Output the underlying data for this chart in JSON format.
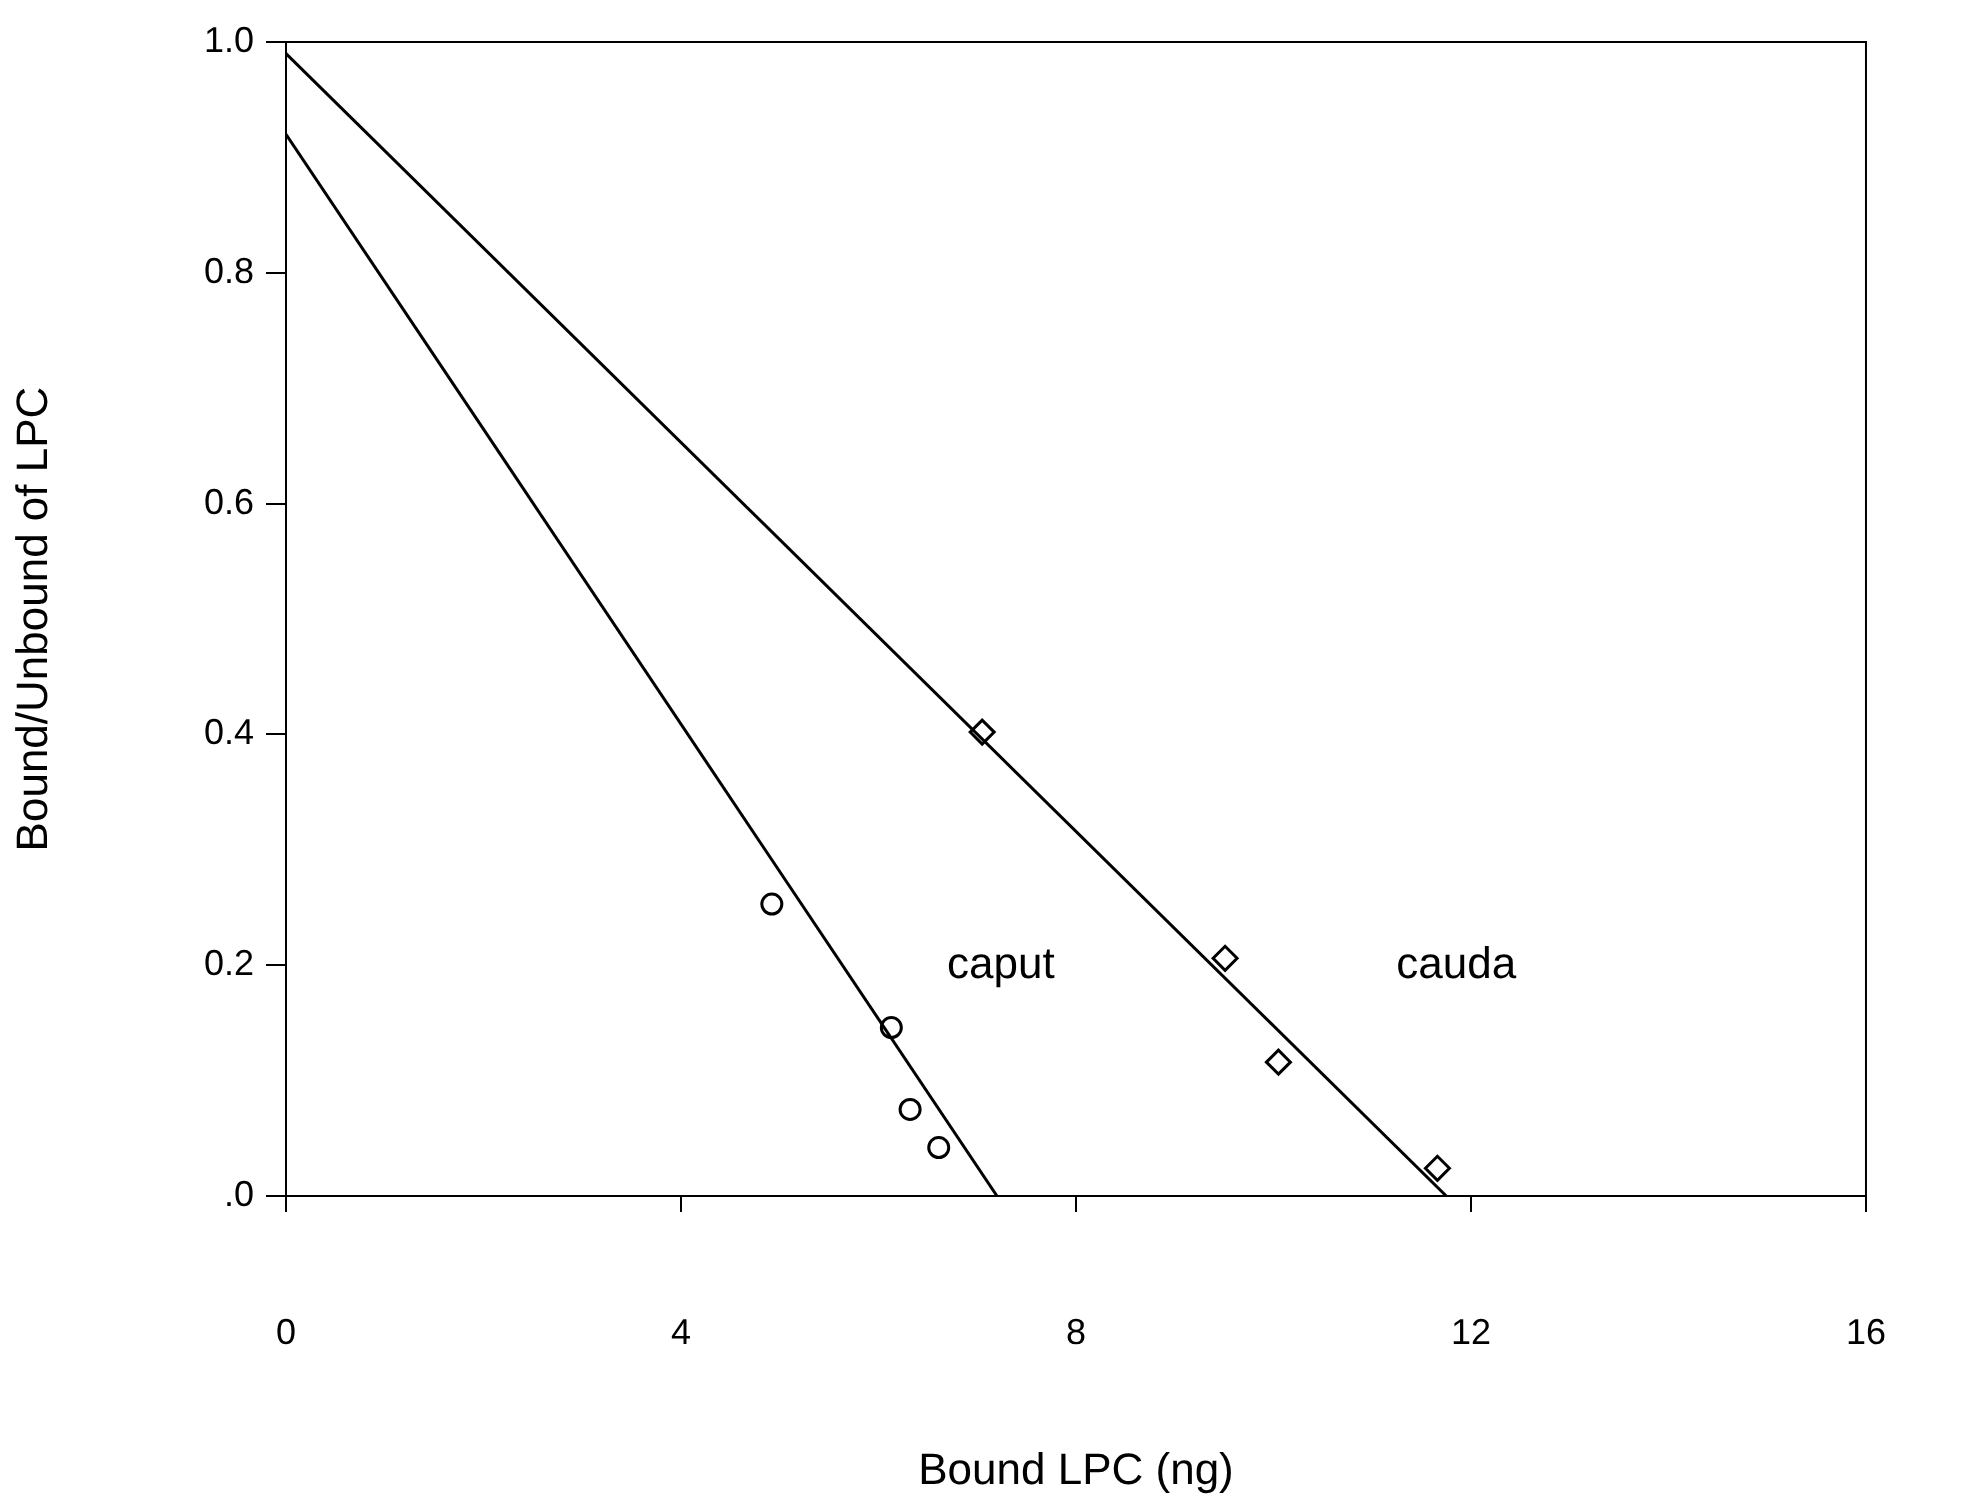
{
  "chart_data": {
    "type": "scatter",
    "xlabel": "Bound LPC (ng)",
    "ylabel": "Bound/Unbound of LPC",
    "xlim": [
      0,
      16
    ],
    "xticks": [
      0,
      4,
      8,
      12,
      16
    ],
    "ylim": [
      0,
      1
    ],
    "yticks": [
      {
        "value": 0,
        "label": ".0"
      },
      0.2,
      0.4,
      0.6,
      0.8,
      {
        "value": 1,
        "label": "1.0"
      }
    ],
    "grid": false,
    "legend": false,
    "series": [
      {
        "type": "scatter",
        "marker": "circle",
        "color": "#000000",
        "x": [
          4.92,
          6.13,
          6.32,
          6.61
        ],
        "values": [
          0.253,
          0.146,
          0.075,
          0.042
        ]
      },
      {
        "type": "scatter",
        "marker": "diamond",
        "color": "#000000",
        "x": [
          7.05,
          9.51,
          10.05,
          11.66
        ],
        "values": [
          0.402,
          0.206,
          0.116,
          0.024
        ]
      },
      {
        "type": "line",
        "name": "caput",
        "marker": "none",
        "line_style": "solid",
        "color": "#000000",
        "x": [
          0,
          7.2
        ],
        "values": [
          0.92,
          0
        ]
      },
      {
        "type": "line",
        "name": "cauda",
        "marker": "none",
        "line_style": "solid",
        "color": "#000000",
        "x": [
          0,
          11.75
        ],
        "values": [
          0.99,
          0
        ]
      }
    ]
  }
}
